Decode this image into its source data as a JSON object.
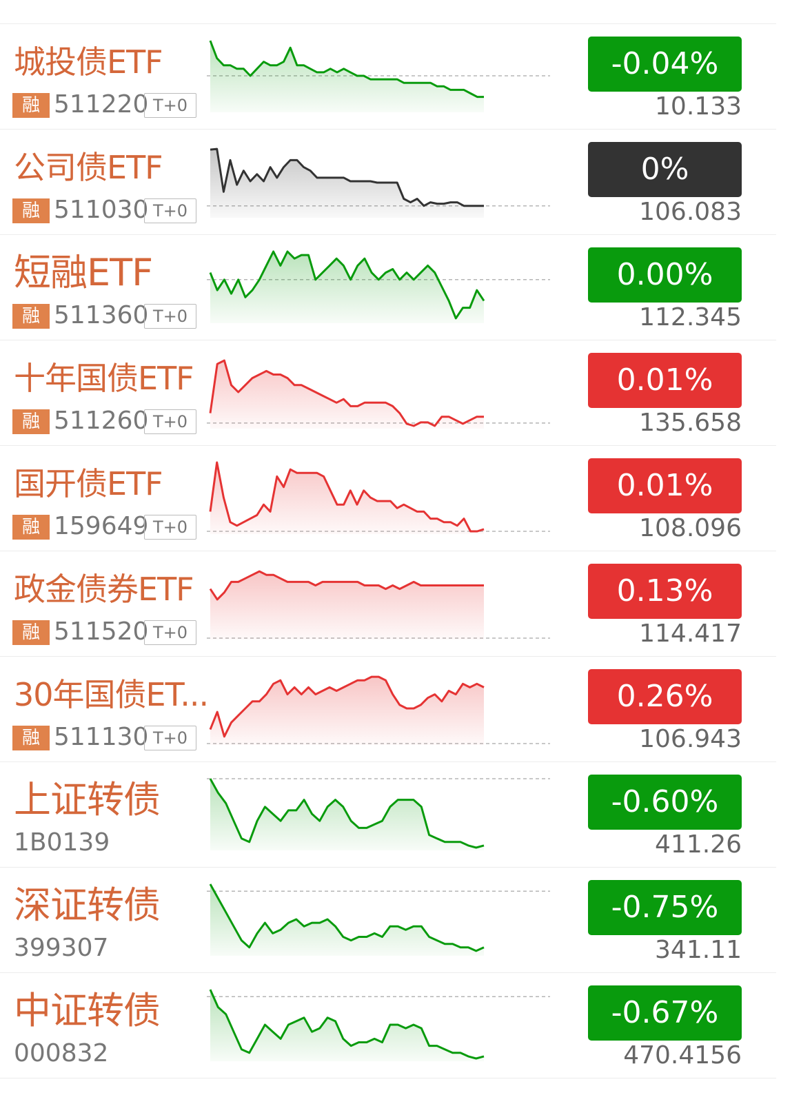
{
  "colors": {
    "up": "#e53333",
    "down": "#099b0d",
    "flat": "#333333",
    "name": "#d4673a",
    "tag": "#e0824b"
  },
  "tag_rong": "融",
  "tag_t0": "T+0",
  "items": [
    {
      "name": "城投债ETF",
      "code": "511220",
      "margin": true,
      "t0": true,
      "change": "-0.04%",
      "price": "10.133",
      "trend": "down",
      "chart_data": {
        "type": "line",
        "ref": 5,
        "ylim": [
          0,
          10
        ],
        "values": [
          10,
          7.5,
          6.5,
          6.5,
          6,
          6,
          5,
          6,
          7,
          6.5,
          6.5,
          7,
          9,
          6.5,
          6.5,
          6,
          5.5,
          5.5,
          6,
          5.5,
          6,
          5.5,
          5,
          5,
          4.5,
          4.5,
          4.5,
          4.5,
          4.5,
          4,
          4,
          4,
          4,
          4,
          3.5,
          3.5,
          3,
          3,
          3,
          2.5,
          2,
          2
        ]
      }
    },
    {
      "name": "公司债ETF",
      "code": "511030",
      "margin": true,
      "t0": true,
      "change": "0%",
      "price": "106.083",
      "trend": "flat",
      "chart_data": {
        "type": "line",
        "ref": 1.5,
        "ylim": [
          0,
          10
        ],
        "values": [
          9.5,
          9.6,
          3.5,
          8,
          4.5,
          6.5,
          5,
          6,
          5,
          7,
          5.5,
          7,
          8,
          8,
          7,
          6.5,
          5.5,
          5.5,
          5.5,
          5.5,
          5.5,
          5,
          5,
          5,
          5,
          4.8,
          4.8,
          4.8,
          4.8,
          2.5,
          2,
          2.5,
          1.5,
          2,
          1.8,
          1.8,
          2,
          2,
          1.5,
          1.5,
          1.5,
          1.5
        ]
      }
    },
    {
      "name": "短融ETF",
      "code": "511360",
      "margin": true,
      "t0": true,
      "change": "0.00%",
      "price": "112.345",
      "trend": "down",
      "chart_data": {
        "type": "line",
        "ref": 6,
        "ylim": [
          0,
          10
        ],
        "values": [
          7,
          4.5,
          6,
          4,
          6,
          3.5,
          4.5,
          6,
          8,
          10,
          8,
          10,
          9,
          9.5,
          9.5,
          6,
          7,
          8,
          9,
          8,
          6,
          8,
          9,
          7,
          6,
          7,
          7.5,
          6,
          7,
          6,
          7,
          8,
          7,
          5,
          3,
          0.5,
          2,
          2,
          4.5,
          3
        ]
      }
    },
    {
      "name": "十年国债ETF",
      "code": "511260",
      "margin": true,
      "t0": true,
      "change": "0.01%",
      "price": "135.658",
      "trend": "up",
      "chart_data": {
        "type": "line",
        "ref": 0.6,
        "ylim": [
          0,
          10
        ],
        "values": [
          2,
          9,
          9.5,
          6,
          5,
          6,
          7,
          7.5,
          8,
          7.5,
          7.5,
          7,
          6,
          6,
          5.5,
          5,
          4.5,
          4,
          3.5,
          4,
          3,
          3,
          3.5,
          3.5,
          3.5,
          3.5,
          3,
          2,
          0.5,
          0.2,
          0.7,
          0.7,
          0.2,
          1.5,
          1.5,
          1,
          0.5,
          1,
          1.5,
          1.5
        ]
      }
    },
    {
      "name": "国开债ETF",
      "code": "159649",
      "margin": true,
      "t0": true,
      "change": "0.01%",
      "price": "108.096",
      "trend": "up",
      "chart_data": {
        "type": "line",
        "ref": 0.2,
        "ylim": [
          0,
          10
        ],
        "values": [
          3,
          10,
          5,
          1.5,
          1,
          1.5,
          2,
          2.5,
          4,
          3,
          8,
          6.5,
          9,
          8.5,
          8.5,
          8.5,
          8.5,
          8,
          6,
          4,
          4,
          6,
          4,
          6,
          5,
          4.5,
          4.5,
          4.5,
          3.5,
          4,
          3.5,
          3,
          3,
          2,
          2,
          1.5,
          1.5,
          1,
          2,
          0.2,
          0.2,
          0.5
        ]
      }
    },
    {
      "name": "政金债券ETF",
      "code": "511520",
      "margin": true,
      "t0": true,
      "change": "0.13%",
      "price": "114.417",
      "trend": "up",
      "chart_data": {
        "type": "line",
        "ref": 0,
        "ylim": [
          0,
          10
        ],
        "values": [
          7,
          5.5,
          6.5,
          8,
          8,
          8.5,
          9,
          9.5,
          9,
          9,
          8.5,
          8,
          8,
          8,
          8,
          7.5,
          8,
          8,
          8,
          8,
          8,
          8,
          7.5,
          7.5,
          7.5,
          7,
          7.5,
          7,
          7.5,
          8,
          7.5,
          7.5,
          7.5,
          7.5,
          7.5,
          7.5,
          7.5,
          7.5,
          7.5,
          7.5
        ]
      }
    },
    {
      "name": "30年国债ET...",
      "code": "511130",
      "margin": true,
      "t0": true,
      "change": "0.26%",
      "price": "106.943",
      "trend": "up",
      "chart_data": {
        "type": "line",
        "ref": 0,
        "ylim": [
          0,
          10
        ],
        "values": [
          2,
          4.5,
          1,
          3,
          4,
          5,
          6,
          6,
          7,
          8.5,
          9,
          7,
          8,
          7,
          8,
          7,
          7.5,
          8,
          7.5,
          8,
          8.5,
          9,
          9,
          9.5,
          9.5,
          9,
          7,
          5.5,
          5,
          5,
          5.5,
          6.5,
          7,
          6,
          7.5,
          7,
          8.5,
          8,
          8.5,
          8
        ]
      }
    },
    {
      "name": "上证转债",
      "code": "1B0139",
      "margin": false,
      "t0": false,
      "change": "-0.60%",
      "price": "411.26",
      "trend": "down",
      "chart_data": {
        "type": "line",
        "ref": 10,
        "ylim": [
          0,
          10
        ],
        "values": [
          10,
          8,
          6.5,
          4,
          1.5,
          1,
          4,
          6,
          5,
          4,
          5.5,
          5.5,
          7,
          5,
          4,
          6,
          7,
          6,
          4,
          3,
          3,
          3.5,
          4,
          6,
          7,
          7,
          7,
          6,
          2,
          1.5,
          1,
          1,
          1,
          0.5,
          0.2,
          0.5
        ]
      }
    },
    {
      "name": "深证转债",
      "code": "399307",
      "margin": false,
      "t0": false,
      "change": "-0.75%",
      "price": "341.11",
      "trend": "down",
      "chart_data": {
        "type": "line",
        "ref": 9,
        "ylim": [
          0,
          10
        ],
        "values": [
          10,
          8,
          6,
          4,
          2,
          1,
          3,
          4.5,
          3,
          3.5,
          4.5,
          5,
          4,
          4.5,
          4.5,
          5,
          4,
          2.5,
          2,
          2.5,
          2.5,
          3,
          2.5,
          4,
          4,
          3.5,
          4,
          4,
          2.5,
          2,
          1.5,
          1.5,
          1,
          1,
          0.5,
          1
        ]
      }
    },
    {
      "name": "中证转债",
      "code": "000832",
      "margin": false,
      "t0": false,
      "change": "-0.67%",
      "price": "470.4156",
      "trend": "down",
      "chart_data": {
        "type": "line",
        "ref": 9,
        "ylim": [
          0,
          10
        ],
        "values": [
          10,
          7.5,
          6.5,
          4,
          1.5,
          1,
          3,
          5,
          4,
          3,
          5,
          5.5,
          6,
          4,
          4.5,
          6,
          5.5,
          3,
          2,
          2.5,
          2.5,
          3,
          2.5,
          5,
          5,
          4.5,
          5,
          4.5,
          2,
          2,
          1.5,
          1,
          1,
          0.5,
          0.2,
          0.5
        ]
      }
    }
  ]
}
